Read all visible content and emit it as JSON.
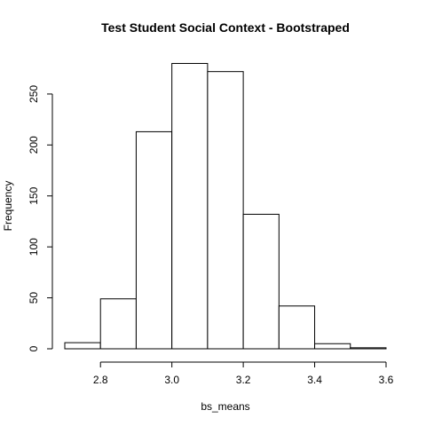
{
  "chart_data": {
    "type": "bar",
    "title": "Test Student Social Context - Bootstraped",
    "xlabel": "bs_means",
    "ylabel": "Frequency",
    "bins": [
      {
        "from": 2.7,
        "to": 2.8,
        "count": 6
      },
      {
        "from": 2.8,
        "to": 2.9,
        "count": 49
      },
      {
        "from": 2.9,
        "to": 3.0,
        "count": 213
      },
      {
        "from": 3.0,
        "to": 3.1,
        "count": 280
      },
      {
        "from": 3.1,
        "to": 3.2,
        "count": 272
      },
      {
        "from": 3.2,
        "to": 3.3,
        "count": 132
      },
      {
        "from": 3.3,
        "to": 3.4,
        "count": 42
      },
      {
        "from": 3.4,
        "to": 3.5,
        "count": 5
      },
      {
        "from": 3.5,
        "to": 3.6,
        "count": 1
      }
    ],
    "xlim": [
      2.7,
      3.6
    ],
    "ylim": [
      0,
      290
    ],
    "x_ticks": [
      2.8,
      3.0,
      3.2,
      3.4,
      3.6
    ],
    "x_tick_labels": [
      "2.8",
      "3.0",
      "3.2",
      "3.4",
      "3.6"
    ],
    "y_ticks": [
      0,
      50,
      100,
      150,
      200,
      250
    ],
    "y_tick_labels": [
      "0",
      "50",
      "100",
      "150",
      "200",
      "250"
    ]
  },
  "colors": {
    "bar_fill": "#ffffff",
    "stroke": "#000000"
  }
}
